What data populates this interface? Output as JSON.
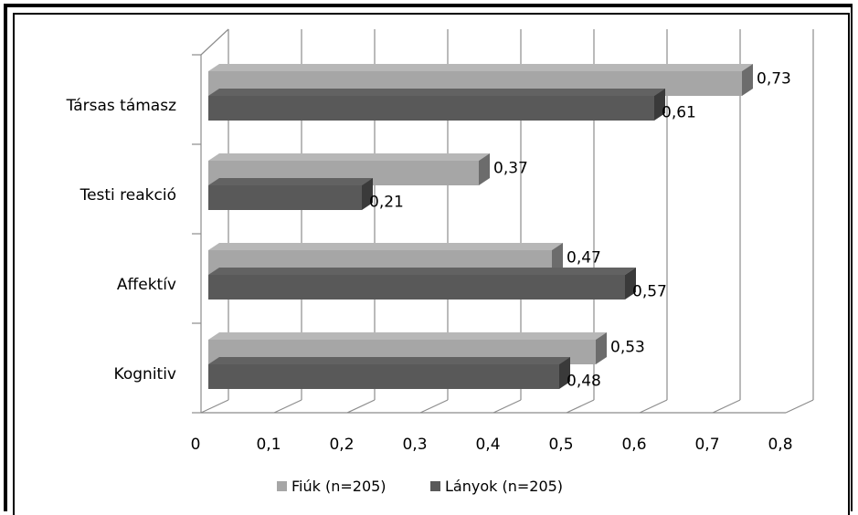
{
  "chart_data": {
    "type": "bar",
    "orientation": "horizontal",
    "three_d": true,
    "categories": [
      "Társas támasz",
      "Testi reakció",
      "Affektív",
      "Kognitiv"
    ],
    "series": [
      {
        "name": "Fiúk (n=205)",
        "values": [
          0.73,
          0.37,
          0.47,
          0.53
        ],
        "labels": [
          "0,73",
          "0,37",
          "0,47",
          "0,53"
        ],
        "color": "#a6a6a6"
      },
      {
        "name": "Lányok (n=205)",
        "values": [
          0.61,
          0.21,
          0.57,
          0.48
        ],
        "labels": [
          "0,61",
          "0,21",
          "0,57",
          "0,48"
        ],
        "color": "#595959"
      }
    ],
    "xlim": [
      0,
      0.8
    ],
    "x_ticks": [
      0,
      0.1,
      0.2,
      0.3,
      0.4,
      0.5,
      0.6,
      0.7,
      0.8
    ],
    "x_tick_labels": [
      "0",
      "0,1",
      "0,2",
      "0,3",
      "0,4",
      "0,5",
      "0,6",
      "0,7",
      "0,8"
    ],
    "grid": true,
    "legend": "bottom"
  }
}
